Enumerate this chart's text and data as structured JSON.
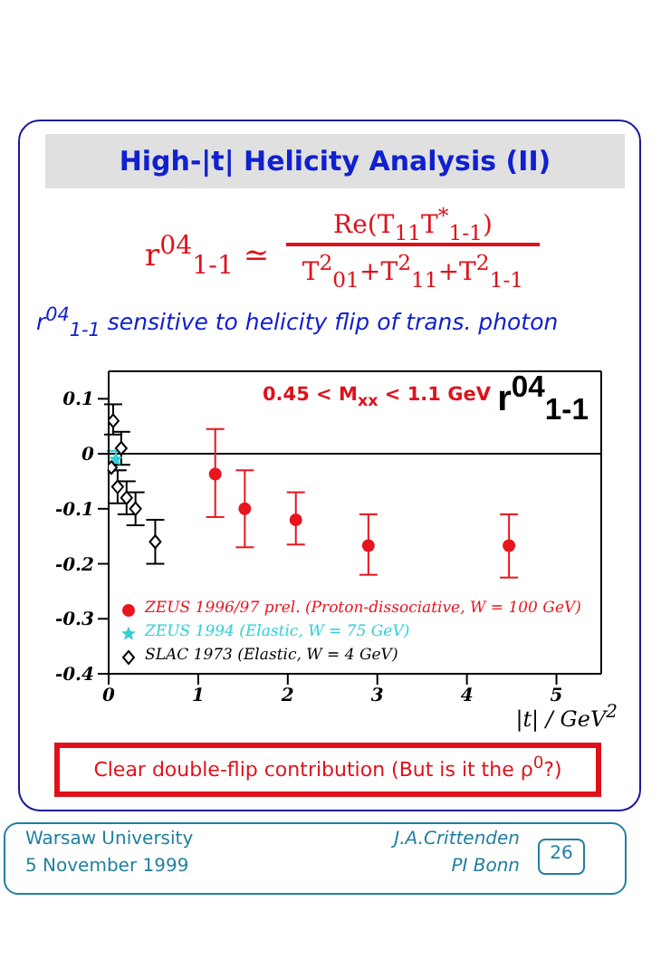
{
  "chart_data": {
    "type": "scatter",
    "title": "High-|t| Helicity Analysis (II)",
    "subtitle": "r$^{04}$$_{1-1}$ sensitive to helicity flip of trans. photon",
    "xlabel": "|t| / GeV$^{2}$",
    "ylabel": "r$^{04}$$_{1-1}$",
    "annotations": [
      "r$^{04}$$_{1-1}$ ≃",
      "Re(T$_{11}$T$^{*}$$_{1-1}$)",
      "T$^{2}$$_{01}$+T$^{2}$$_{11}$+T$^{2}$$_{1-1}$",
      "0.45 < M$_{xx}$ < 1.1 GeV",
      "Clear double-flip contribution (But is it the ρ$^{0}$?)",
      "Warsaw University",
      "5 November 1999",
      "J.A.Crittenden",
      "PI Bonn",
      "26"
    ],
    "series": [
      {
        "name": "ZEUS 1996/97 prel. (Proton-dissociative, W = 100 GeV)",
        "color": "#e8141e",
        "marker": "circle",
        "x": [
          1.19,
          1.52,
          2.09,
          2.9,
          4.47
        ],
        "values": [
          -0.037,
          -0.1,
          -0.12,
          -0.167,
          -0.167
        ],
        "errors": [
          [
            -0.115,
            0.045
          ],
          [
            -0.17,
            -0.03
          ],
          [
            -0.165,
            -0.07
          ],
          [
            -0.22,
            -0.11
          ],
          [
            -0.225,
            -0.11
          ]
        ]
      },
      {
        "name": "ZEUS 1994 (Elastic, W = 75 GeV)",
        "color": "#30d0d8",
        "marker": "star",
        "x": [
          0.08
        ],
        "values": [
          -0.01
        ],
        "errors": [
          [
            -0.03,
            0.005
          ]
        ]
      },
      {
        "name": "SLAC 1973 (Elastic, W = 4 GeV)",
        "color": "#000000",
        "marker": "diamond",
        "x": [
          0.03,
          0.05,
          0.1,
          0.14,
          0.2,
          0.3,
          0.52
        ],
        "values": [
          -0.025,
          0.06,
          -0.06,
          0.01,
          -0.08,
          -0.1,
          -0.16
        ],
        "errors": [
          null,
          [
            0.035,
            0.09
          ],
          [
            -0.09,
            -0.03
          ],
          [
            -0.02,
            0.04
          ],
          [
            -0.11,
            -0.05
          ],
          [
            -0.13,
            -0.07
          ],
          [
            -0.2,
            -0.12
          ]
        ]
      }
    ],
    "xlim": [
      0,
      5.5
    ],
    "xticks": [
      0,
      1,
      2,
      3,
      4,
      5
    ],
    "ylim": [
      -0.4,
      0.15
    ],
    "yticks": [
      -0.4,
      -0.3,
      -0.2,
      -0.1,
      0,
      0.1
    ],
    "ref_lines": [
      {
        "axis": "y",
        "value": 0,
        "color": "#000000"
      }
    ],
    "legend": "bottom left"
  }
}
